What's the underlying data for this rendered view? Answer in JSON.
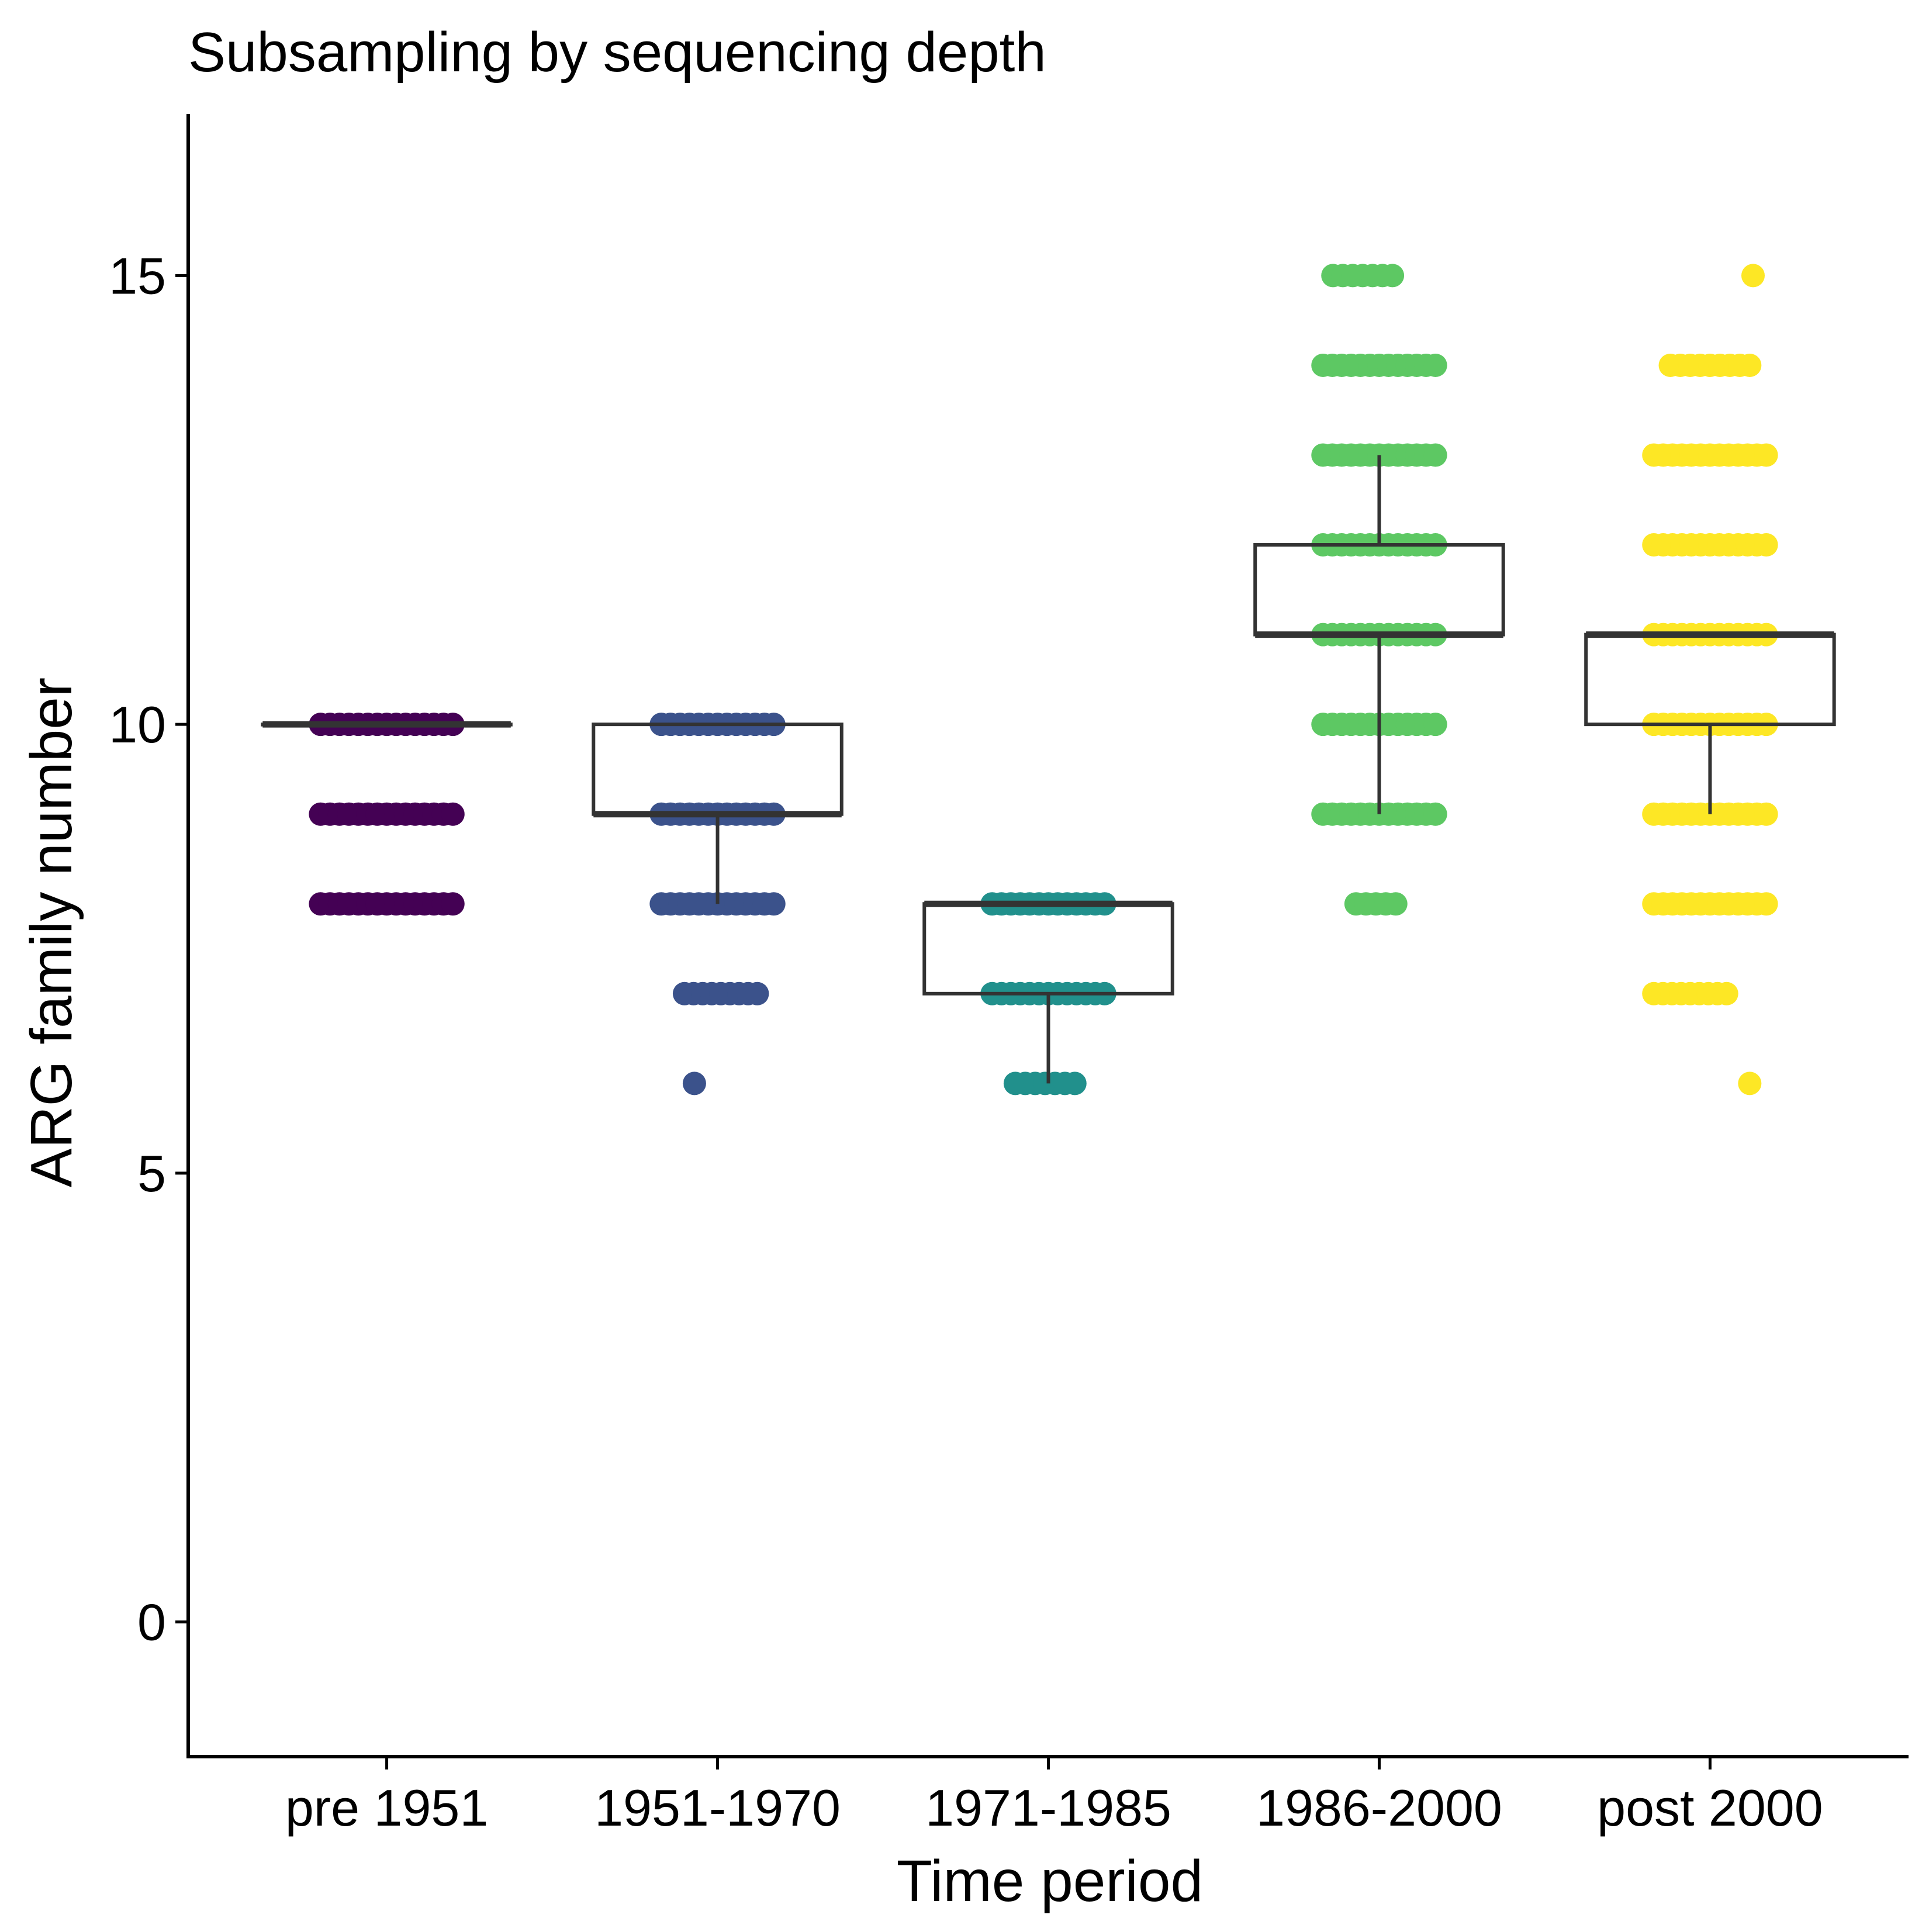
{
  "chart_data": {
    "type": "boxplot",
    "title": "Subsampling by sequencing depth",
    "xlabel": "Time period",
    "ylabel": "ARG family number",
    "categories": [
      "pre 1951",
      "1951-1970",
      "1971-1985",
      "1986-2000",
      "post 2000"
    ],
    "ylim": [
      -1.5,
      16.8
    ],
    "yticks": [
      0,
      5,
      10,
      15
    ],
    "grid": false,
    "legend": "none",
    "colors": [
      "#440154",
      "#3B528B",
      "#21908C",
      "#5DC863",
      "#FDE725"
    ],
    "boxes": [
      {
        "category": "pre 1951",
        "q1": 10,
        "median": 10,
        "q3": 10,
        "whisker_low": 10,
        "whisker_high": 10
      },
      {
        "category": "1951-1970",
        "q1": 9,
        "median": 9,
        "q3": 10,
        "whisker_low": 8,
        "whisker_high": 10
      },
      {
        "category": "1971-1985",
        "q1": 7,
        "median": 8,
        "q3": 8,
        "whisker_low": 6,
        "whisker_high": 8
      },
      {
        "category": "1986-2000",
        "q1": 11,
        "median": 11,
        "q3": 12,
        "whisker_low": 9,
        "whisker_high": 13
      },
      {
        "category": "post 2000",
        "q1": 10,
        "median": 11,
        "q3": 11,
        "whisker_low": 9,
        "whisker_high": 11
      }
    ],
    "points": [
      {
        "category": "pre 1951",
        "y": 10,
        "x_spread": [
          -0.2,
          0.2
        ]
      },
      {
        "category": "pre 1951",
        "y": 9,
        "x_spread": [
          -0.2,
          0.2
        ]
      },
      {
        "category": "pre 1951",
        "y": 8,
        "x_spread": [
          -0.2,
          0.2
        ]
      },
      {
        "category": "1951-1970",
        "y": 10,
        "x_spread": [
          -0.17,
          0.17
        ]
      },
      {
        "category": "1951-1970",
        "y": 9,
        "x_spread": [
          -0.17,
          0.17
        ]
      },
      {
        "category": "1951-1970",
        "y": 8,
        "x_spread": [
          -0.17,
          0.17
        ]
      },
      {
        "category": "1951-1970",
        "y": 7,
        "x_spread": [
          -0.1,
          0.12
        ]
      },
      {
        "category": "1951-1970",
        "y": 6,
        "x_spread": [
          -0.07,
          -0.07
        ]
      },
      {
        "category": "1971-1985",
        "y": 8,
        "x_spread": [
          -0.17,
          0.17
        ]
      },
      {
        "category": "1971-1985",
        "y": 7,
        "x_spread": [
          -0.17,
          0.17
        ]
      },
      {
        "category": "1971-1985",
        "y": 6,
        "x_spread": [
          -0.1,
          0.08
        ]
      },
      {
        "category": "1986-2000",
        "y": 15,
        "x_spread": [
          -0.14,
          0.04
        ]
      },
      {
        "category": "1986-2000",
        "y": 14,
        "x_spread": [
          -0.17,
          0.17
        ]
      },
      {
        "category": "1986-2000",
        "y": 13,
        "x_spread": [
          -0.17,
          0.17
        ]
      },
      {
        "category": "1986-2000",
        "y": 12,
        "x_spread": [
          -0.17,
          0.17
        ]
      },
      {
        "category": "1986-2000",
        "y": 11,
        "x_spread": [
          -0.17,
          0.17
        ]
      },
      {
        "category": "1986-2000",
        "y": 10,
        "x_spread": [
          -0.17,
          0.17
        ]
      },
      {
        "category": "1986-2000",
        "y": 9,
        "x_spread": [
          -0.17,
          0.17
        ]
      },
      {
        "category": "1986-2000",
        "y": 8,
        "x_spread": [
          -0.07,
          0.05
        ]
      },
      {
        "category": "post 2000",
        "y": 15,
        "x_spread": [
          0.13,
          0.13
        ]
      },
      {
        "category": "post 2000",
        "y": 14,
        "x_spread": [
          -0.12,
          0.12
        ]
      },
      {
        "category": "post 2000",
        "y": 13,
        "x_spread": [
          -0.17,
          0.17
        ]
      },
      {
        "category": "post 2000",
        "y": 12,
        "x_spread": [
          -0.17,
          0.17
        ]
      },
      {
        "category": "post 2000",
        "y": 11,
        "x_spread": [
          -0.17,
          0.17
        ]
      },
      {
        "category": "post 2000",
        "y": 10,
        "x_spread": [
          -0.17,
          0.17
        ]
      },
      {
        "category": "post 2000",
        "y": 9,
        "x_spread": [
          -0.17,
          0.17
        ]
      },
      {
        "category": "post 2000",
        "y": 8,
        "x_spread": [
          -0.17,
          0.17
        ]
      },
      {
        "category": "post 2000",
        "y": 7,
        "x_spread": [
          -0.17,
          0.05
        ]
      },
      {
        "category": "post 2000",
        "y": 6,
        "x_spread": [
          0.12,
          0.12
        ]
      }
    ]
  }
}
